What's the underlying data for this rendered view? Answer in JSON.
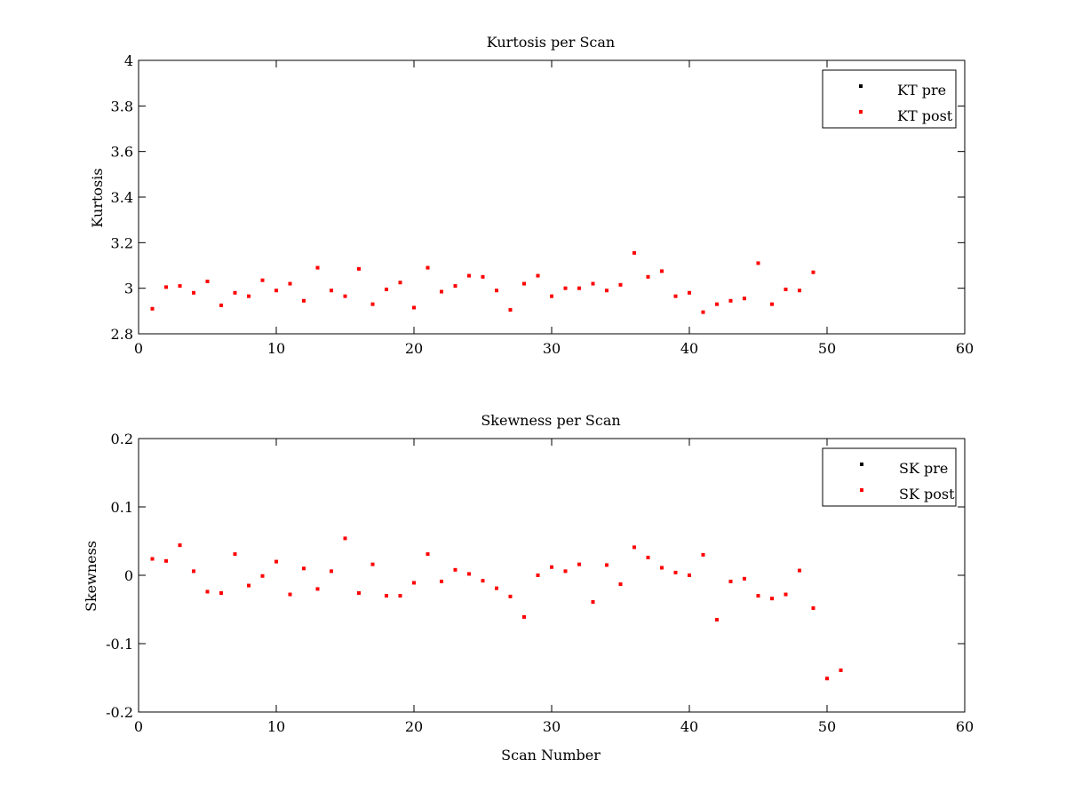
{
  "colors": {
    "pre": "#000000",
    "post": "#ff0000",
    "axes": "#000000",
    "background": "#ffffff"
  },
  "chart_data": [
    {
      "type": "scatter",
      "title": "Kurtosis per Scan",
      "xlabel": "",
      "ylabel": "Kurtosis",
      "xlim": [
        0,
        60
      ],
      "ylim": [
        2.8,
        4
      ],
      "xticks": [
        0,
        10,
        20,
        30,
        40,
        50,
        60
      ],
      "yticks": [
        2.8,
        3,
        3.2,
        3.4,
        3.6,
        3.8,
        4
      ],
      "xtick_labels": [
        "0",
        "10",
        "20",
        "30",
        "40",
        "50",
        "60"
      ],
      "ytick_labels": [
        "2.8",
        "3",
        "3.2",
        "3.4",
        "3.6",
        "3.8",
        "4"
      ],
      "legend_position": "top-right",
      "series": [
        {
          "name": "KT pre",
          "color": "#000000",
          "points": []
        },
        {
          "name": "KT post",
          "color": "#ff0000",
          "points": [
            [
              1,
              2.91
            ],
            [
              2,
              3.005
            ],
            [
              3,
              3.01
            ],
            [
              4,
              2.98
            ],
            [
              5,
              3.03
            ],
            [
              6,
              2.925
            ],
            [
              7,
              2.98
            ],
            [
              8,
              2.965
            ],
            [
              9,
              3.035
            ],
            [
              10,
              2.99
            ],
            [
              11,
              3.02
            ],
            [
              12,
              2.945
            ],
            [
              13,
              3.09
            ],
            [
              14,
              2.99
            ],
            [
              15,
              2.965
            ],
            [
              16,
              3.085
            ],
            [
              17,
              2.93
            ],
            [
              18,
              2.995
            ],
            [
              19,
              3.025
            ],
            [
              20,
              2.915
            ],
            [
              21,
              3.09
            ],
            [
              22,
              2.985
            ],
            [
              23,
              3.01
            ],
            [
              24,
              3.055
            ],
            [
              25,
              3.05
            ],
            [
              26,
              2.99
            ],
            [
              27,
              2.905
            ],
            [
              28,
              3.02
            ],
            [
              29,
              3.055
            ],
            [
              30,
              2.965
            ],
            [
              31,
              3.0
            ],
            [
              32,
              3.0
            ],
            [
              33,
              3.02
            ],
            [
              34,
              2.99
            ],
            [
              35,
              3.015
            ],
            [
              36,
              3.155
            ],
            [
              37,
              3.05
            ],
            [
              38,
              3.075
            ],
            [
              39,
              2.965
            ],
            [
              40,
              2.98
            ],
            [
              41,
              2.895
            ],
            [
              42,
              2.93
            ],
            [
              43,
              2.945
            ],
            [
              44,
              2.955
            ],
            [
              45,
              3.11
            ],
            [
              46,
              2.93
            ],
            [
              47,
              2.995
            ],
            [
              48,
              2.99
            ],
            [
              49,
              3.07
            ]
          ]
        }
      ]
    },
    {
      "type": "scatter",
      "title": "Skewness per Scan",
      "xlabel": "Scan Number",
      "ylabel": "Skewness",
      "xlim": [
        0,
        60
      ],
      "ylim": [
        -0.2,
        0.2
      ],
      "xticks": [
        0,
        10,
        20,
        30,
        40,
        50,
        60
      ],
      "yticks": [
        -0.2,
        -0.1,
        0,
        0.1,
        0.2
      ],
      "xtick_labels": [
        "0",
        "10",
        "20",
        "30",
        "40",
        "50",
        "60"
      ],
      "ytick_labels": [
        "-0.2",
        "-0.1",
        "0",
        "0.1",
        "0.2"
      ],
      "legend_position": "top-right",
      "series": [
        {
          "name": "SK pre",
          "color": "#000000",
          "points": []
        },
        {
          "name": "SK post",
          "color": "#ff0000",
          "points": [
            [
              1,
              0.024
            ],
            [
              2,
              0.021
            ],
            [
              3,
              0.044
            ],
            [
              4,
              0.006
            ],
            [
              5,
              -0.024
            ],
            [
              6,
              -0.026
            ],
            [
              7,
              0.031
            ],
            [
              8,
              -0.015
            ],
            [
              9,
              -0.001
            ],
            [
              10,
              0.02
            ],
            [
              11,
              -0.028
            ],
            [
              12,
              0.01
            ],
            [
              13,
              -0.02
            ],
            [
              14,
              0.006
            ],
            [
              15,
              0.054
            ],
            [
              16,
              -0.026
            ],
            [
              17,
              0.016
            ],
            [
              18,
              -0.03
            ],
            [
              19,
              -0.03
            ],
            [
              20,
              -0.011
            ],
            [
              21,
              0.031
            ],
            [
              22,
              -0.009
            ],
            [
              23,
              0.008
            ],
            [
              24,
              0.002
            ],
            [
              25,
              -0.008
            ],
            [
              26,
              -0.019
            ],
            [
              27,
              -0.031
            ],
            [
              28,
              -0.061
            ],
            [
              29,
              0.0
            ],
            [
              30,
              0.012
            ],
            [
              31,
              0.006
            ],
            [
              32,
              0.016
            ],
            [
              33,
              -0.039
            ],
            [
              34,
              0.015
            ],
            [
              35,
              -0.013
            ],
            [
              36,
              0.041
            ],
            [
              37,
              0.026
            ],
            [
              38,
              0.011
            ],
            [
              39,
              0.004
            ],
            [
              40,
              0.0
            ],
            [
              41,
              0.03
            ],
            [
              42,
              -0.065
            ],
            [
              43,
              -0.009
            ],
            [
              44,
              -0.005
            ],
            [
              45,
              -0.03
            ],
            [
              46,
              -0.034
            ],
            [
              47,
              -0.028
            ],
            [
              48,
              0.007
            ],
            [
              49,
              -0.048
            ],
            [
              50,
              -0.151
            ],
            [
              51,
              -0.139
            ]
          ]
        }
      ]
    }
  ]
}
